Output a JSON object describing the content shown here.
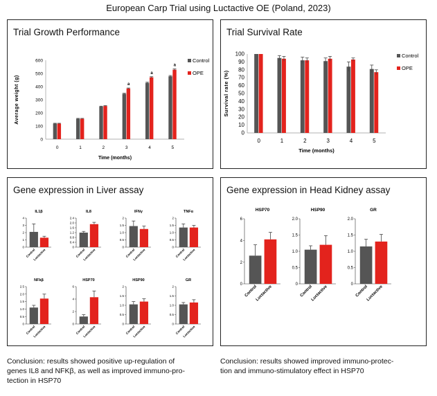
{
  "page_title": "European Carp Trial using Luctactive OE   (Poland, 2023)",
  "colors": {
    "control": "#555555",
    "treatment": "#e3231d"
  },
  "panels": {
    "growth": {
      "title": "Trial Growth Performance"
    },
    "survival": {
      "title": "Trial Survival Rate"
    },
    "liver": {
      "title": "Gene expression in Liver assay"
    },
    "kidney": {
      "title": "Gene expression in Head Kidney assay"
    }
  },
  "conclusions": {
    "liver": [
      "Conclusion: results showed positive up-regulation of",
      "genes IL8 and NFKβ, as well as improved immuno-pro-",
      "tection in HSP70"
    ],
    "kidney": [
      "Conclusion: results showed improved immuno-protec-",
      "tion and immuno-stimulatory effect in HSP70"
    ]
  },
  "chart_data": [
    {
      "id": "growth",
      "type": "bar",
      "xlabel": "Time (months)",
      "ylabel": "Average weight (g)",
      "ylim": [
        0,
        600
      ],
      "yticks": [
        0,
        100,
        200,
        300,
        400,
        500,
        600
      ],
      "categories": [
        "0",
        "1",
        "2",
        "3",
        "4",
        "5"
      ],
      "series": [
        {
          "name": "Control",
          "values": [
            118,
            155,
            248,
            345,
            428,
            478
          ],
          "errors": [
            3,
            3,
            3,
            4,
            5,
            6
          ]
        },
        {
          "name": "OPE",
          "values": [
            118,
            155,
            252,
            385,
            470,
            528
          ],
          "errors": [
            3,
            3,
            3,
            4,
            5,
            6
          ]
        }
      ],
      "significance": [
        "",
        "",
        "",
        "a",
        "a",
        "a"
      ],
      "legend": "right"
    },
    {
      "id": "survival",
      "type": "bar",
      "xlabel": "Time (months)",
      "ylabel": "Survival rate (%)",
      "ylim": [
        0,
        100
      ],
      "yticks": [
        0,
        10,
        20,
        30,
        40,
        50,
        60,
        70,
        80,
        90,
        100
      ],
      "categories": [
        "0",
        "1",
        "2",
        "3",
        "4",
        "5"
      ],
      "series": [
        {
          "name": "Control",
          "values": [
            100,
            95,
            92,
            91,
            84,
            81
          ],
          "errors": [
            0,
            3,
            4,
            4,
            6,
            5
          ]
        },
        {
          "name": "OPE",
          "values": [
            100,
            94,
            92,
            94,
            93,
            77
          ],
          "errors": [
            0,
            3,
            3,
            3,
            2,
            3
          ]
        }
      ],
      "legend": "right"
    },
    {
      "id": "liver",
      "type": "bar",
      "categories": [
        "Control",
        "Luctactive"
      ],
      "subplots": [
        {
          "title": "IL1β",
          "ylim": [
            0,
            4
          ],
          "yticks": [
            "0",
            "1",
            "2",
            "3",
            "4"
          ],
          "values": [
            2.1,
            1.3
          ],
          "errors": [
            1.1,
            0.2
          ]
        },
        {
          "title": "IL8",
          "ylim": [
            0,
            2.4
          ],
          "yticks": [
            "0",
            "0.4",
            "0.8",
            "1.2",
            "1.6",
            "2.0",
            "2.4"
          ],
          "values": [
            1.2,
            1.9
          ],
          "errors": [
            0.1,
            0.15
          ]
        },
        {
          "title": "IFNγ",
          "ylim": [
            0,
            2
          ],
          "yticks": [
            "0",
            "0.5",
            "1.0",
            "1.5",
            "2"
          ],
          "values": [
            1.45,
            1.25
          ],
          "errors": [
            0.35,
            0.2
          ]
        },
        {
          "title": "TNFα",
          "ylim": [
            0,
            2
          ],
          "yticks": [
            "0",
            "0.5",
            "1.0",
            "1.5",
            "2"
          ],
          "values": [
            1.35,
            1.35
          ],
          "errors": [
            0.25,
            0.15
          ]
        },
        {
          "title": "NFkβ",
          "ylim": [
            0,
            2.5
          ],
          "yticks": [
            "0",
            "0.5",
            "1.0",
            "1.5",
            "2.0",
            "2.5"
          ],
          "values": [
            1.1,
            1.7
          ],
          "errors": [
            0.15,
            0.3
          ]
        },
        {
          "title": "HSP70",
          "ylim": [
            0,
            6
          ],
          "yticks": [
            "0",
            "2",
            "4",
            "6"
          ],
          "values": [
            1.2,
            4.3
          ],
          "errors": [
            0.3,
            1.0
          ]
        },
        {
          "title": "HSP90",
          "ylim": [
            0,
            2
          ],
          "yticks": [
            "0",
            "0.5",
            "1.0",
            "1.5",
            "2"
          ],
          "values": [
            1.05,
            1.2
          ],
          "errors": [
            0.15,
            0.15
          ]
        },
        {
          "title": "GR",
          "ylim": [
            0,
            2
          ],
          "yticks": [
            "0",
            "0.5",
            "1.0",
            "1.5",
            "2"
          ],
          "values": [
            1.05,
            1.15
          ],
          "errors": [
            0.1,
            0.15
          ]
        }
      ]
    },
    {
      "id": "kidney",
      "type": "bar",
      "categories": [
        "Control",
        "Luctactive"
      ],
      "subplots": [
        {
          "title": "HSP70",
          "ylim": [
            0,
            6
          ],
          "yticks": [
            "0",
            "2",
            "4",
            "6"
          ],
          "values": [
            2.6,
            4.1
          ],
          "errors": [
            1.0,
            0.65
          ]
        },
        {
          "title": "HSP90",
          "ylim": [
            0,
            2
          ],
          "yticks": [
            "0",
            "0.5",
            "1.0",
            "1.5",
            "2.0"
          ],
          "values": [
            1.05,
            1.2
          ],
          "errors": [
            0.12,
            0.28
          ]
        },
        {
          "title": "GR",
          "ylim": [
            0,
            2
          ],
          "yticks": [
            "0",
            "0.5",
            "1.0",
            "1.5",
            "2.0"
          ],
          "values": [
            1.15,
            1.3
          ],
          "errors": [
            0.22,
            0.22
          ]
        }
      ]
    }
  ]
}
